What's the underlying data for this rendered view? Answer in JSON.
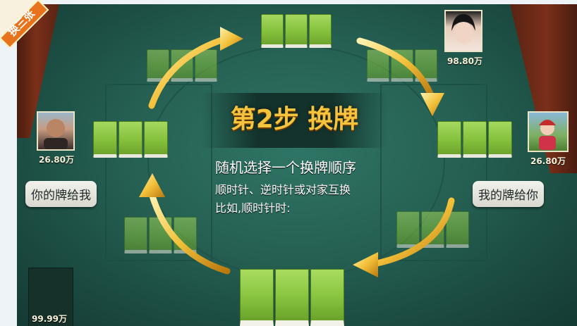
{
  "badge": {
    "label": "换三张"
  },
  "step_title": "第2步 换牌",
  "instructions": {
    "line1": "随机选择一个换牌顺序",
    "line2": "顺时针、逆时针或对家互换",
    "line3": "比如,顺时针时:"
  },
  "players": {
    "left": {
      "score": "26.80万",
      "bubble": "你的牌给我"
    },
    "top": {
      "score": "98.80万"
    },
    "right": {
      "score": "26.80万",
      "bubble": "我的牌给你"
    },
    "self": {
      "score": "99.99万"
    }
  },
  "colors": {
    "felt": "#255f52",
    "tile_green": "#86c23d",
    "arrow_gold": "#f3c13a",
    "title_gold": "#f6c33c"
  }
}
